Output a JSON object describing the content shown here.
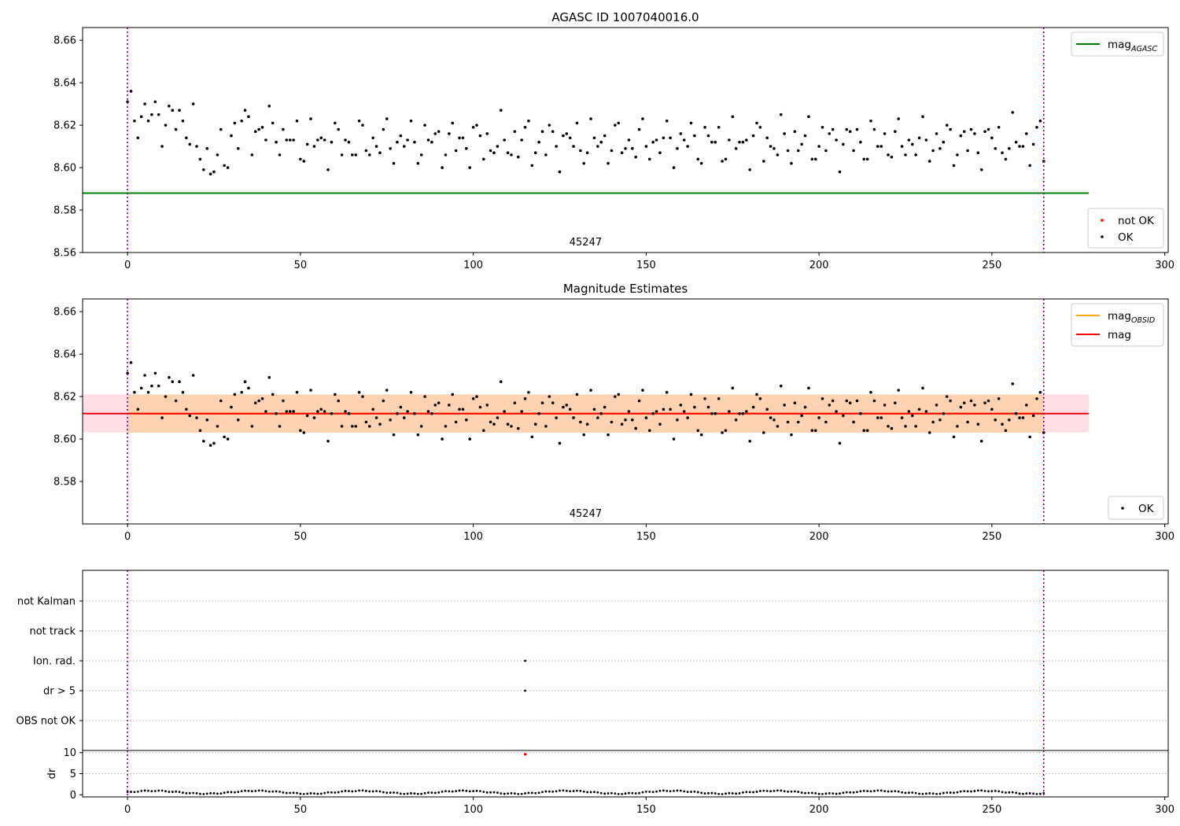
{
  "chart_data": [
    {
      "type": "scatter",
      "title": "AGASC ID 1007040016.0",
      "xlim": [
        -13,
        301
      ],
      "ylim": [
        8.56,
        8.666
      ],
      "xticks": [
        0,
        50,
        100,
        150,
        200,
        250,
        300
      ],
      "yticks": [
        8.56,
        8.58,
        8.6,
        8.62,
        8.64,
        8.66
      ],
      "obsid_label": "45247",
      "obsid_boundaries": [
        0,
        265
      ],
      "lines": [
        {
          "name": "mag_AGASC",
          "value": 8.588,
          "x": [
            -13,
            278
          ],
          "color": "#008000"
        }
      ],
      "legend_lines": [
        {
          "main": "mag",
          "sub": "AGASC",
          "color": "#008000"
        }
      ],
      "legend_points": [
        {
          "label": "not OK",
          "color": "#ff0000"
        },
        {
          "label": "OK",
          "color": "#000000"
        }
      ],
      "legend_lines_position": "top-right",
      "legend_points_position": "lower-right",
      "series": [
        {
          "name": "OK",
          "color": "#000000",
          "x": [],
          "y": []
        }
      ]
    },
    {
      "type": "scatter",
      "title": "Magnitude Estimates",
      "xlim": [
        -13,
        301
      ],
      "ylim": [
        8.56,
        8.666
      ],
      "xticks": [
        0,
        50,
        100,
        150,
        200,
        250,
        300
      ],
      "yticks": [
        8.58,
        8.6,
        8.62,
        8.64,
        8.66
      ],
      "obsid_label": "45247",
      "obsid_boundaries": [
        0,
        265
      ],
      "mag": 8.612,
      "mag_obsid": 8.612,
      "mag_band": [
        8.603,
        8.621
      ],
      "lines": [
        {
          "name": "mag_OBSID",
          "value": 8.612,
          "x": [
            0,
            265
          ],
          "color": "#ffa500"
        },
        {
          "name": "mag",
          "value": 8.612,
          "x": [
            -13,
            278
          ],
          "color": "#ff0000"
        }
      ],
      "legend_lines": [
        {
          "main": "mag",
          "sub": "OBSID",
          "color": "#ffa500"
        },
        {
          "main": "mag",
          "sub": "",
          "color": "#ff0000"
        }
      ],
      "legend_points": [
        {
          "label": "OK",
          "color": "#000000"
        }
      ],
      "legend_lines_position": "top-right",
      "legend_points_position": "lower-right",
      "series": [
        {
          "name": "OK",
          "color": "#000000",
          "x": [],
          "y": []
        }
      ]
    },
    {
      "type": "scatter",
      "title": "",
      "xlim": [
        -13,
        301
      ],
      "categories": [
        "not Kalman",
        "not track",
        "Ion. rad.",
        "dr > 5",
        "OBS not OK"
      ],
      "flag_points": [
        {
          "x": 115,
          "category": "Ion. rad."
        },
        {
          "x": 115,
          "category": "dr > 5"
        }
      ],
      "obsid_boundaries": [
        0,
        265
      ],
      "grid": true
    },
    {
      "type": "scatter",
      "title": "",
      "ylabel": "dr",
      "xlim": [
        -13,
        301
      ],
      "ylim": [
        -0.5,
        10.5
      ],
      "xticks": [
        0,
        50,
        100,
        150,
        200,
        250,
        300
      ],
      "yticks": [
        0,
        5,
        10
      ],
      "obsid_boundaries": [
        0,
        265
      ],
      "series": [
        {
          "name": "OK",
          "color": "#000000",
          "x": [],
          "y": []
        },
        {
          "name": "not OK",
          "color": "#ff0000",
          "x": [
            115
          ],
          "y": [
            9.6
          ]
        }
      ]
    }
  ]
}
